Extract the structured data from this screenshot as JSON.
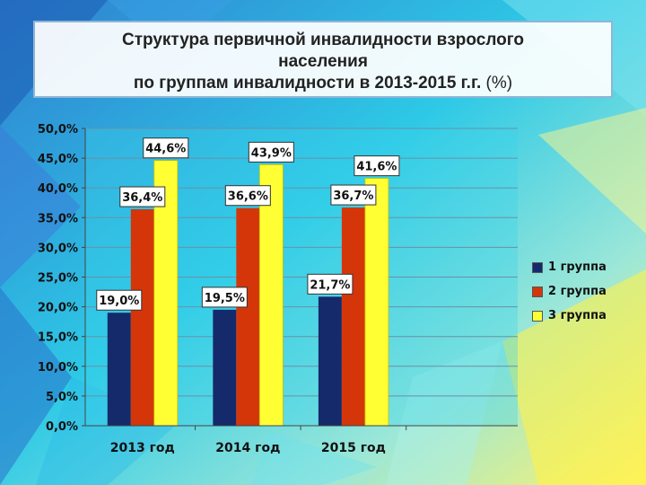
{
  "title": {
    "line1": "Структура первичной инвалидности взрослого",
    "line2": "населения",
    "line3": "по группам инвалидности в 2013-2015 г.г.",
    "line3_unit": "(%)"
  },
  "colors": {
    "group1": "#142a6b",
    "group2": "#d4360a",
    "group3": "#ffff33"
  },
  "chart_data": {
    "type": "bar",
    "title": "Структура первичной инвалидности взрослого населения по группам инвалидности в 2013-2015 г.г. (%)",
    "categories": [
      "2013 год",
      "2014 год",
      "2015 год"
    ],
    "series": [
      {
        "name": "1 группа",
        "values": [
          19.0,
          19.5,
          21.7
        ],
        "labels": [
          "19,0%",
          "19,5%",
          "21,7%"
        ]
      },
      {
        "name": "2 группа",
        "values": [
          36.4,
          36.6,
          36.7
        ],
        "labels": [
          "36,4%",
          "36,6%",
          "36,7%"
        ]
      },
      {
        "name": "3 группа",
        "values": [
          44.6,
          43.9,
          41.6
        ],
        "labels": [
          "44,6%",
          "43,9%",
          "41,6%"
        ]
      }
    ],
    "ylim": [
      0,
      50
    ],
    "yticks": [
      0,
      5,
      10,
      15,
      20,
      25,
      30,
      35,
      40,
      45,
      50
    ],
    "ytick_labels": [
      "0,0%",
      "5,0%",
      "10,0%",
      "15,0%",
      "20,0%",
      "25,0%",
      "30,0%",
      "35,0%",
      "40,0%",
      "45,0%",
      "50,0%"
    ],
    "grid": true,
    "legend": "right"
  }
}
